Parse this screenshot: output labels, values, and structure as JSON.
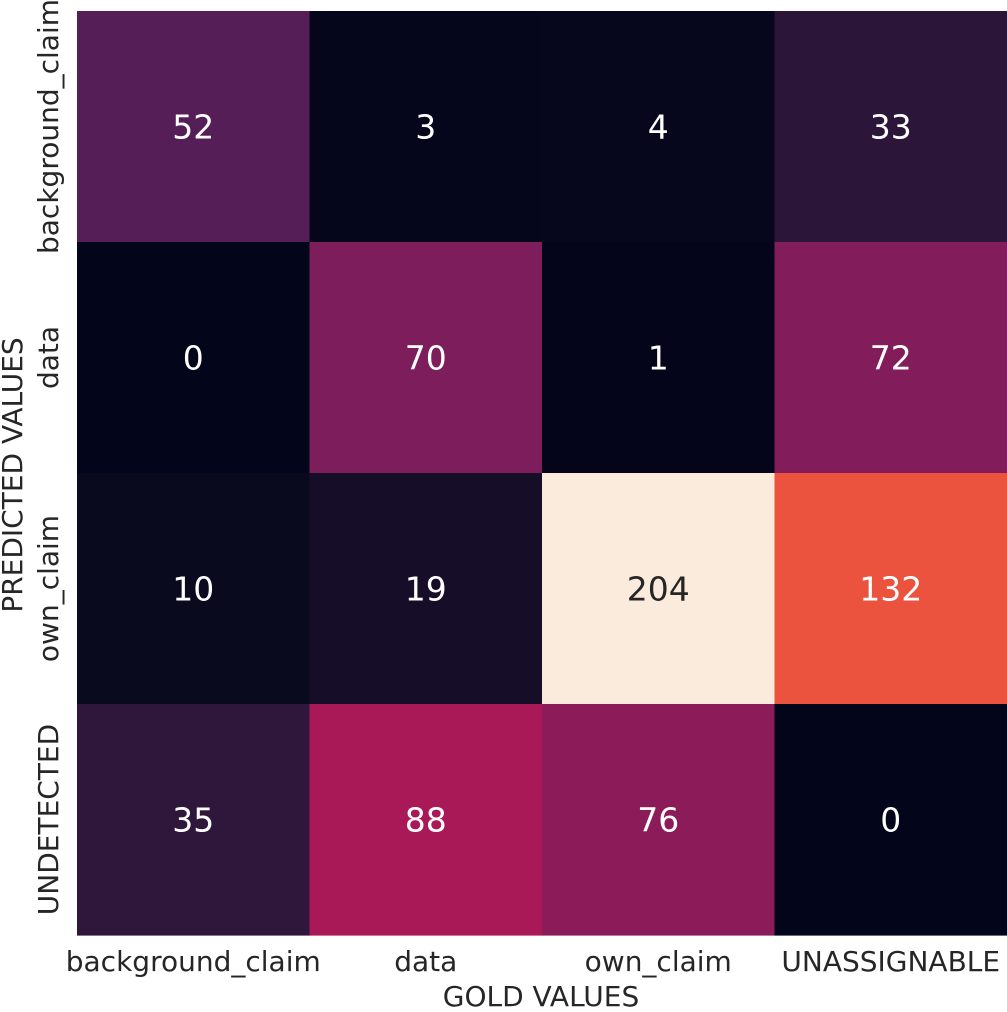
{
  "chart_data": {
    "type": "heatmap",
    "xlabel": "GOLD VALUES",
    "ylabel": "PREDICTED VALUES",
    "x_categories": [
      "background_claim",
      "data",
      "own_claim",
      "UNASSIGNABLE"
    ],
    "y_categories": [
      "background_claim",
      "data",
      "own_claim",
      "UNDETECTED"
    ],
    "values": [
      [
        52,
        3,
        4,
        33
      ],
      [
        0,
        70,
        1,
        72
      ],
      [
        10,
        19,
        204,
        132
      ],
      [
        35,
        88,
        76,
        0
      ]
    ],
    "colormap": "rocket",
    "value_range": [
      0,
      204
    ],
    "colorbar": false,
    "annotations": true
  }
}
